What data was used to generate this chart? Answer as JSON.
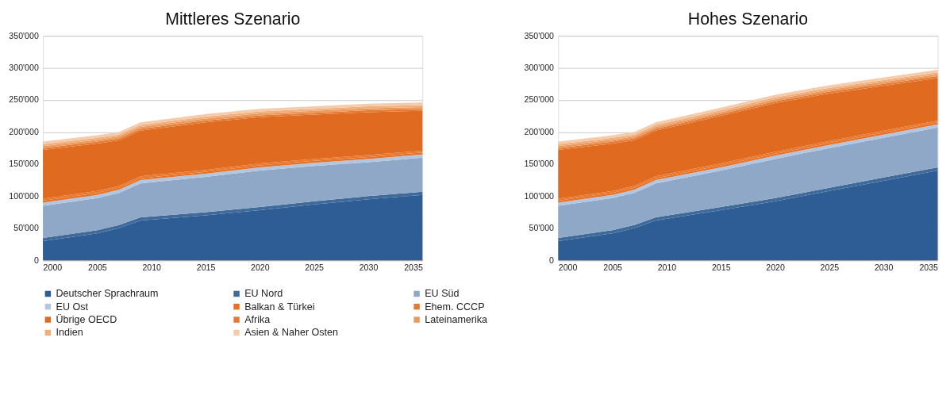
{
  "chart_data": [
    {
      "type": "area",
      "stacked": true,
      "title": "Mittleres Szenario",
      "x": [
        2000,
        2005,
        2007,
        2009,
        2015,
        2020,
        2025,
        2030,
        2035
      ],
      "xlim": [
        2000,
        2035
      ],
      "xticks": [
        2000,
        2005,
        2010,
        2015,
        2020,
        2025,
        2030,
        2035
      ],
      "ylim": [
        0,
        350000
      ],
      "yticks": [
        0,
        {
          "value": 50000,
          "label": "50'000"
        },
        {
          "value": 100000,
          "label": "100'000"
        },
        {
          "value": 150000,
          "label": "150'000"
        },
        {
          "value": 200000,
          "label": "200'000"
        },
        {
          "value": 250000,
          "label": "250'000"
        },
        {
          "value": 300000,
          "label": "300'000"
        },
        {
          "value": 350000,
          "label": "350'000"
        }
      ],
      "grid": "y",
      "legend": "bottom",
      "series": [
        {
          "name": "Deutscher Sprachraum",
          "color": "#2e5d95",
          "values": [
            30000,
            42000,
            50000,
            62000,
            70000,
            78000,
            87000,
            95000,
            102000
          ]
        },
        {
          "name": "EU Nord",
          "color": "#3f6a9a",
          "values": [
            5000,
            5000,
            5000,
            5000,
            5000,
            5000,
            5000,
            5000,
            5000
          ]
        },
        {
          "name": "EU Süd",
          "color": "#8fa8c8",
          "values": [
            50000,
            50000,
            50000,
            53000,
            55000,
            57000,
            55000,
            53000,
            53000
          ]
        },
        {
          "name": "EU Ost",
          "color": "#b3c6e0",
          "values": [
            5000,
            5000,
            5000,
            5000,
            5000,
            5000,
            5000,
            5000,
            5000
          ]
        },
        {
          "name": "Balkan & Türkei",
          "color": "#e8712a",
          "values": [
            3000,
            3000,
            3000,
            3000,
            3000,
            3000,
            3000,
            3000,
            3000
          ]
        },
        {
          "name": "Ehem. CCCP",
          "color": "#e87a30",
          "values": [
            3000,
            3000,
            3000,
            3000,
            3000,
            3000,
            3000,
            3000,
            3000
          ]
        },
        {
          "name": "Übrige OECD",
          "color": "#e06a1f",
          "values": [
            76000,
            74000,
            71000,
            71000,
            74000,
            72000,
            69000,
            67000,
            62000
          ]
        },
        {
          "name": "Afrika",
          "color": "#e57a35",
          "values": [
            3000,
            3000,
            3000,
            3000,
            3000,
            3000,
            3000,
            3000,
            3000
          ]
        },
        {
          "name": "Lateinamerika",
          "color": "#eb9a5c",
          "values": [
            3000,
            3000,
            3000,
            3000,
            3000,
            3000,
            3000,
            3000,
            3000
          ]
        },
        {
          "name": "Indien",
          "color": "#f0b07d",
          "values": [
            3000,
            3000,
            3000,
            3000,
            3000,
            3000,
            3000,
            3000,
            3000
          ]
        },
        {
          "name": "Asien & Naher Osten",
          "color": "#f5cbaa",
          "values": [
            4000,
            4000,
            4000,
            4000,
            4000,
            4000,
            4000,
            4000,
            4000
          ]
        }
      ]
    },
    {
      "type": "area",
      "stacked": true,
      "title": "Hohes Szenario",
      "x": [
        2000,
        2005,
        2007,
        2009,
        2015,
        2020,
        2025,
        2030,
        2035
      ],
      "xlim": [
        2000,
        2035
      ],
      "xticks": [
        2000,
        2005,
        2010,
        2015,
        2020,
        2025,
        2030,
        2035
      ],
      "ylim": [
        0,
        350000
      ],
      "yticks": [
        0,
        {
          "value": 50000,
          "label": "50'000"
        },
        {
          "value": 100000,
          "label": "100'000"
        },
        {
          "value": 150000,
          "label": "150'000"
        },
        {
          "value": 200000,
          "label": "200'000"
        },
        {
          "value": 250000,
          "label": "250'000"
        },
        {
          "value": 300000,
          "label": "300'000"
        },
        {
          "value": 350000,
          "label": "350'000"
        }
      ],
      "grid": "y",
      "series": [
        {
          "color": "#2e5d95",
          "values": [
            30000,
            42000,
            50000,
            62000,
            78000,
            92000,
            108000,
            124000,
            140000
          ]
        },
        {
          "color": "#3f6a9a",
          "values": [
            5000,
            5000,
            5000,
            5000,
            5000,
            5000,
            5000,
            5000,
            5000
          ]
        },
        {
          "color": "#8fa8c8",
          "values": [
            50000,
            50000,
            50000,
            53000,
            57000,
            61000,
            62000,
            62000,
            62000
          ]
        },
        {
          "color": "#b3c6e0",
          "values": [
            5000,
            5000,
            5000,
            5000,
            5000,
            5000,
            5000,
            5000,
            5000
          ]
        },
        {
          "color": "#e8712a",
          "values": [
            3000,
            3000,
            3000,
            3000,
            3000,
            3000,
            3000,
            3000,
            3000
          ]
        },
        {
          "color": "#e87a30",
          "values": [
            3000,
            3000,
            3000,
            3000,
            3000,
            3000,
            3000,
            3000,
            3000
          ]
        },
        {
          "color": "#e06a1f",
          "values": [
            76000,
            74000,
            71000,
            71000,
            74000,
            76000,
            74000,
            70000,
            66000
          ]
        },
        {
          "color": "#e57a35",
          "values": [
            3000,
            3000,
            3000,
            3000,
            3000,
            3000,
            3000,
            3000,
            3000
          ]
        },
        {
          "color": "#eb9a5c",
          "values": [
            3000,
            3000,
            3000,
            3000,
            3000,
            3000,
            3000,
            3000,
            3000
          ]
        },
        {
          "color": "#f0b07d",
          "values": [
            3000,
            3000,
            3000,
            3000,
            3000,
            3000,
            3000,
            3000,
            3000
          ]
        },
        {
          "color": "#f5cbaa",
          "values": [
            4000,
            4000,
            4000,
            4000,
            4000,
            4000,
            4000,
            4000,
            4000
          ]
        }
      ]
    }
  ]
}
